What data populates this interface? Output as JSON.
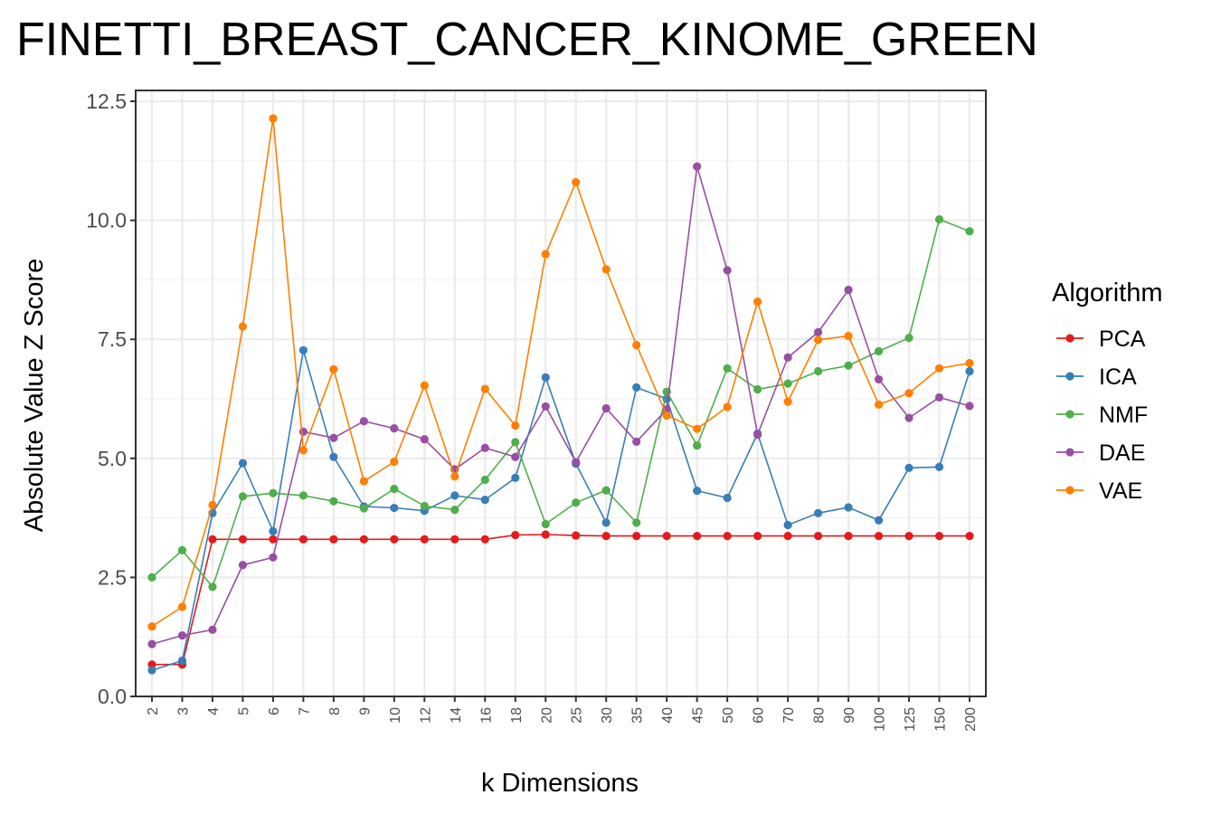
{
  "chart_data": {
    "type": "line",
    "title": "FINETTI_BREAST_CANCER_KINOME_GREEN",
    "xlabel": "k Dimensions",
    "ylabel": "Absolute Value Z Score",
    "ylim": [
      0,
      12.5
    ],
    "y_ticks": [
      "0.0",
      "2.5",
      "5.0",
      "7.5",
      "10.0",
      "12.5"
    ],
    "grid": true,
    "legend_position": "right",
    "legend_title": "Algorithm",
    "categories": [
      "2",
      "3",
      "4",
      "5",
      "6",
      "7",
      "8",
      "9",
      "10",
      "12",
      "14",
      "16",
      "18",
      "20",
      "25",
      "30",
      "35",
      "40",
      "45",
      "50",
      "60",
      "70",
      "80",
      "90",
      "100",
      "125",
      "150",
      "200"
    ],
    "series": [
      {
        "name": "PCA",
        "color": "#E41A1C",
        "values": [
          0.67,
          0.67,
          3.3,
          3.3,
          3.3,
          3.3,
          3.3,
          3.3,
          3.3,
          3.3,
          3.3,
          3.3,
          3.39,
          3.4,
          3.38,
          3.37,
          3.37,
          3.37,
          3.37,
          3.37,
          3.37,
          3.37,
          3.37,
          3.37,
          3.37,
          3.37,
          3.37,
          3.37
        ]
      },
      {
        "name": "ICA",
        "color": "#377EB8",
        "values": [
          0.55,
          0.75,
          3.85,
          4.9,
          3.47,
          7.27,
          5.03,
          3.99,
          3.96,
          3.9,
          4.22,
          4.13,
          4.59,
          6.7,
          4.89,
          3.65,
          6.49,
          6.25,
          4.32,
          4.17,
          5.52,
          3.6,
          3.85,
          3.97,
          3.7,
          4.8,
          4.82,
          6.83
        ]
      },
      {
        "name": "NMF",
        "color": "#4DAF4A",
        "values": [
          2.5,
          3.07,
          2.3,
          4.2,
          4.27,
          4.22,
          4.1,
          3.95,
          4.36,
          4.0,
          3.92,
          4.55,
          5.34,
          3.62,
          4.07,
          4.33,
          3.65,
          6.4,
          5.27,
          6.89,
          6.45,
          6.57,
          6.83,
          6.95,
          7.25,
          7.53,
          10.02,
          9.77
        ]
      },
      {
        "name": "DAE",
        "color": "#984EA3",
        "values": [
          1.1,
          1.28,
          1.4,
          2.76,
          2.92,
          5.56,
          5.43,
          5.78,
          5.63,
          5.4,
          4.77,
          5.22,
          5.03,
          6.09,
          4.92,
          6.05,
          5.35,
          6.03,
          11.13,
          8.95,
          5.5,
          7.12,
          7.65,
          8.54,
          6.66,
          5.85,
          6.28,
          6.1
        ]
      },
      {
        "name": "VAE",
        "color": "#FF7F00",
        "values": [
          1.47,
          1.88,
          4.02,
          7.77,
          12.14,
          5.17,
          6.87,
          4.52,
          4.93,
          6.53,
          4.62,
          6.46,
          5.69,
          9.29,
          10.8,
          8.97,
          7.38,
          5.9,
          5.62,
          6.08,
          8.29,
          6.19,
          7.49,
          7.57,
          6.13,
          6.37,
          6.89,
          7.0
        ]
      }
    ]
  }
}
